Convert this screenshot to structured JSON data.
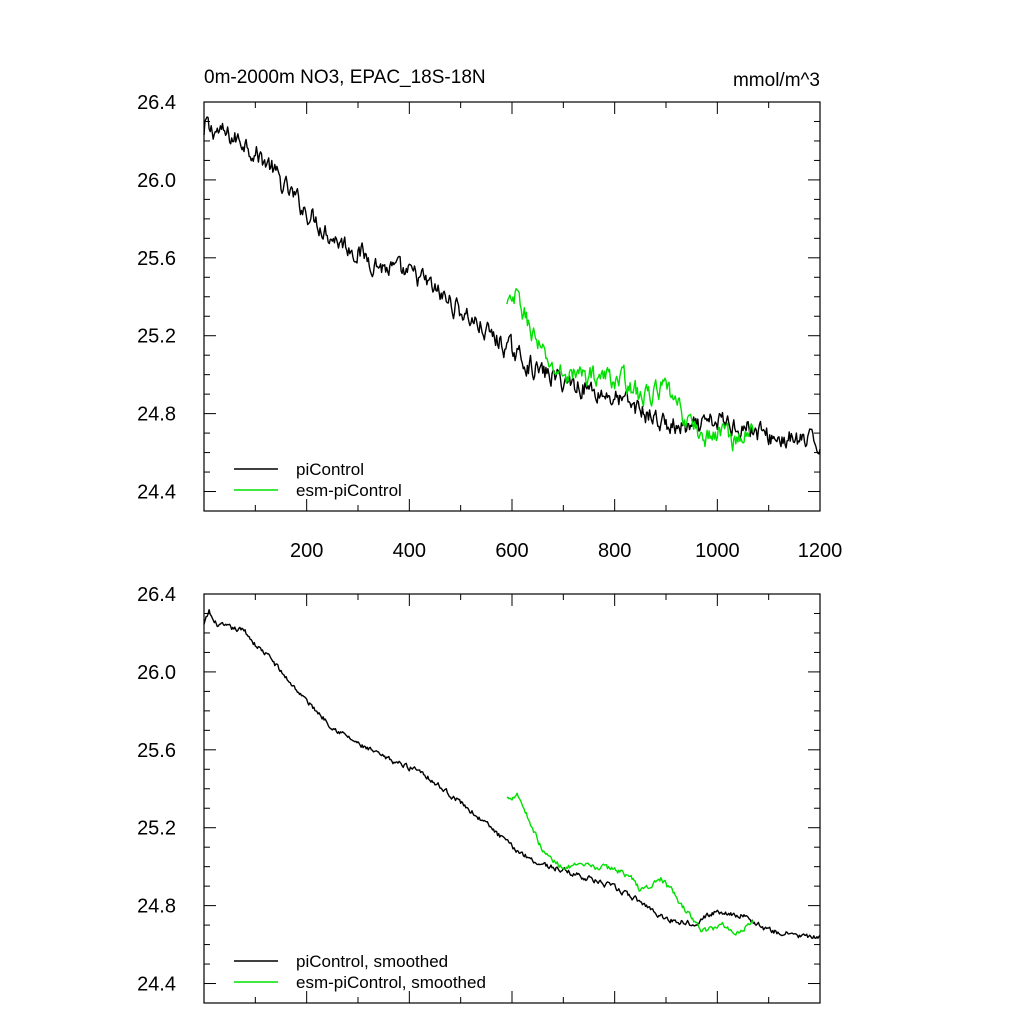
{
  "figure": {
    "title": "0m-2000m NO3, EPAC_18S-18N",
    "units": "mmol/m^3"
  },
  "chart_data": [
    {
      "type": "line",
      "title": "0m-2000m NO3, EPAC_18S-18N",
      "units_label": "mmol/m^3",
      "xlim": [
        0,
        1200
      ],
      "ylim": [
        24.3,
        26.4
      ],
      "x_tick_labels": [
        "200",
        "400",
        "600",
        "800",
        "1000",
        "1200"
      ],
      "x_ticks": [
        200,
        400,
        600,
        800,
        1000,
        1200
      ],
      "y_tick_labels": [
        "24.4",
        "24.8",
        "25.2",
        "25.6",
        "26.0",
        "26.4"
      ],
      "y_ticks": [
        24.4,
        24.8,
        25.2,
        25.6,
        26.0,
        26.4
      ],
      "grid": false,
      "legend_position": "bottom-left",
      "noise": 0.045,
      "series": [
        {
          "name": "piControl",
          "color": "#000000",
          "x": [
            0,
            5,
            10,
            20,
            40,
            60,
            80,
            100,
            130,
            150,
            200,
            250,
            300,
            350,
            400,
            420,
            450,
            500,
            550,
            600,
            650,
            700,
            750,
            800,
            850,
            900,
            950,
            1000,
            1050,
            1100,
            1150,
            1200
          ],
          "values": [
            26.22,
            26.3,
            26.25,
            26.26,
            26.23,
            26.21,
            26.2,
            26.14,
            26.07,
            25.98,
            25.84,
            25.71,
            25.63,
            25.55,
            25.51,
            25.5,
            25.43,
            25.33,
            25.22,
            25.12,
            25.02,
            24.97,
            24.93,
            24.88,
            24.82,
            24.74,
            24.71,
            24.76,
            24.74,
            24.68,
            24.66,
            24.64
          ]
        },
        {
          "name": "esm-piControl",
          "color": "#00e000",
          "x": [
            590,
            600,
            610,
            620,
            640,
            660,
            680,
            700,
            720,
            750,
            800,
            830,
            850,
            870,
            890,
            910,
            930,
            950,
            970,
            990,
            1010,
            1030,
            1050,
            1070
          ],
          "values": [
            25.35,
            25.36,
            25.4,
            25.33,
            25.22,
            25.1,
            25.03,
            25.0,
            25.0,
            25.0,
            24.98,
            24.96,
            24.88,
            24.9,
            24.93,
            24.89,
            24.8,
            24.75,
            24.68,
            24.68,
            24.72,
            24.67,
            24.68,
            24.71
          ]
        }
      ]
    },
    {
      "type": "line",
      "xlim": [
        0,
        1200
      ],
      "ylim": [
        24.3,
        26.4
      ],
      "x_ticks": [
        200,
        400,
        600,
        800,
        1000,
        1200
      ],
      "y_tick_labels": [
        "24.4",
        "24.8",
        "25.2",
        "25.6",
        "26.0",
        "26.4"
      ],
      "y_ticks": [
        24.4,
        24.8,
        25.2,
        25.6,
        26.0,
        26.4
      ],
      "grid": false,
      "legend_position": "bottom-left",
      "noise": 0.012,
      "series": [
        {
          "name": "piControl, smoothed",
          "color": "#000000",
          "x": [
            0,
            10,
            20,
            40,
            60,
            80,
            100,
            130,
            150,
            200,
            250,
            300,
            350,
            400,
            420,
            450,
            500,
            550,
            600,
            650,
            700,
            750,
            800,
            850,
            900,
            950,
            1000,
            1050,
            1100,
            1150,
            1200
          ],
          "values": [
            26.24,
            26.31,
            26.25,
            26.23,
            26.22,
            26.21,
            26.14,
            26.07,
            26.0,
            25.85,
            25.72,
            25.63,
            25.56,
            25.51,
            25.5,
            25.43,
            25.33,
            25.22,
            25.1,
            25.02,
            24.98,
            24.94,
            24.89,
            24.82,
            24.73,
            24.71,
            24.77,
            24.75,
            24.67,
            24.65,
            24.63
          ]
        },
        {
          "name": "esm-piControl, smoothed",
          "color": "#00e000",
          "x": [
            590,
            600,
            610,
            620,
            640,
            660,
            680,
            700,
            720,
            750,
            800,
            830,
            850,
            870,
            890,
            910,
            930,
            950,
            970,
            990,
            1010,
            1030,
            1050,
            1070
          ],
          "values": [
            25.35,
            25.36,
            25.38,
            25.32,
            25.2,
            25.08,
            25.03,
            25.0,
            25.0,
            25.0,
            24.99,
            24.95,
            24.88,
            24.9,
            24.94,
            24.88,
            24.8,
            24.74,
            24.67,
            24.68,
            24.71,
            24.66,
            24.68,
            24.72
          ]
        }
      ]
    }
  ]
}
